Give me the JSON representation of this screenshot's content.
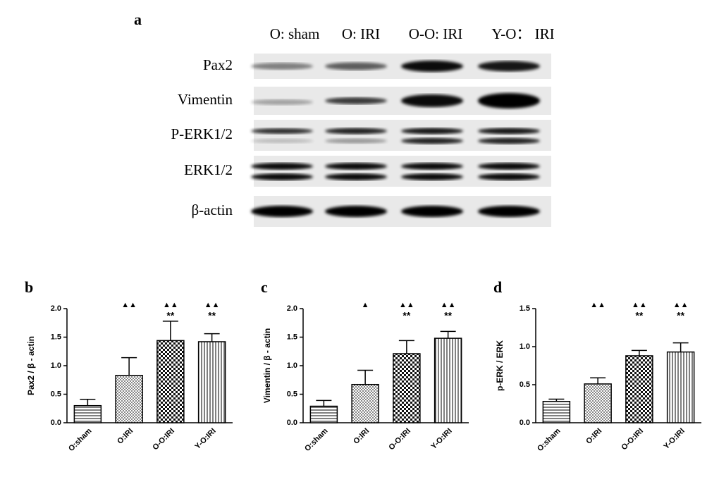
{
  "blot": {
    "panel": "a",
    "lanes": [
      "O: sham",
      "O: IRI",
      "O-O: IRI",
      "Y-O： IRI"
    ],
    "rows": [
      "Pax2",
      "Vimentin",
      "P-ERK1/2",
      "ERK1/2",
      "β-actin"
    ]
  },
  "chart_data": [
    {
      "type": "bar",
      "panel": "b",
      "y_label": "Pax2  /  β - actin",
      "categories": [
        "O:sham",
        "O:IRI",
        "O-O:IRI",
        "Y-O:IRI"
      ],
      "values": [
        0.3,
        0.83,
        1.44,
        1.42
      ],
      "errors": [
        0.11,
        0.31,
        0.34,
        0.14
      ],
      "markers": [
        null,
        "▲▲",
        "▲▲",
        "▲▲"
      ],
      "stars": [
        null,
        null,
        "**",
        "**"
      ],
      "ylim": [
        0,
        2
      ],
      "yticks": [
        {
          "value": 0,
          "label": "0.0"
        },
        0.5,
        {
          "value": 1,
          "label": "1.0"
        },
        1.5,
        {
          "value": 2,
          "label": "2.0"
        }
      ]
    },
    {
      "type": "bar",
      "panel": "c",
      "y_label": "Vimentin  /   β - actin",
      "categories": [
        "O:sham",
        "O:IRI",
        "O-O:IRI",
        "Y-O:IRI"
      ],
      "values": [
        0.29,
        0.67,
        1.21,
        1.48
      ],
      "errors": [
        0.1,
        0.25,
        0.23,
        0.12
      ],
      "markers": [
        null,
        "▲",
        "▲▲",
        "▲▲"
      ],
      "stars": [
        null,
        null,
        "**",
        "**"
      ],
      "ylim": [
        0,
        2
      ],
      "yticks": [
        {
          "value": 0,
          "label": "0.0"
        },
        0.5,
        {
          "value": 1,
          "label": "1.0"
        },
        1.5,
        {
          "value": 2,
          "label": "2.0"
        }
      ]
    },
    {
      "type": "bar",
      "panel": "d",
      "y_label": "p-ERK  /  ERK",
      "categories": [
        "O:sham",
        "O:IRI",
        "O-O:IRI",
        "Y-O:IRI"
      ],
      "values": [
        0.28,
        0.51,
        0.88,
        0.93
      ],
      "errors": [
        0.03,
        0.08,
        0.07,
        0.12
      ],
      "markers": [
        null,
        "▲▲",
        "▲▲",
        "▲▲"
      ],
      "stars": [
        null,
        null,
        "**",
        "**"
      ],
      "ylim": [
        0,
        1.5
      ],
      "yticks": [
        {
          "value": 0,
          "label": "0.0"
        },
        0.5,
        {
          "value": 1,
          "label": "1.0"
        },
        1.5
      ]
    }
  ]
}
